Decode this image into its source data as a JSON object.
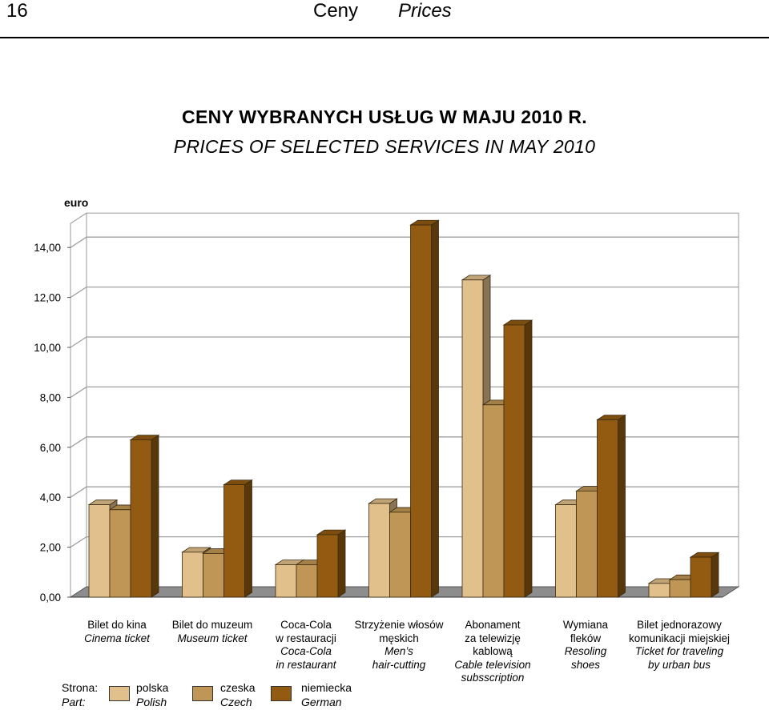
{
  "header": {
    "page_number": "16",
    "title_pl": "Ceny",
    "title_en": "Prices"
  },
  "chart_data": {
    "type": "bar",
    "title": "CENY WYBRANYCH USŁUG W MAJU 2010 R.",
    "subtitle": "PRICES OF SELECTED SERVICES IN MAY 2010",
    "ylabel": "euro",
    "ylim": [
      0,
      14
    ],
    "yticks": [
      "0,00",
      "2,00",
      "4,00",
      "6,00",
      "8,00",
      "10,00",
      "12,00",
      "14,00"
    ],
    "grid": true,
    "categories": [
      {
        "pl": [
          "Bilet do kina"
        ],
        "en": [
          "Cinema ticket"
        ]
      },
      {
        "pl": [
          "Bilet do muzeum"
        ],
        "en": [
          "Museum ticket"
        ]
      },
      {
        "pl": [
          "Coca-Cola",
          "w restauracji"
        ],
        "en": [
          "Coca-Cola",
          "in restaurant"
        ]
      },
      {
        "pl": [
          "Strzyżenie włosów",
          "męskich"
        ],
        "en": [
          "Men’s",
          "hair-cutting"
        ]
      },
      {
        "pl": [
          "Abonament",
          "za telewizję",
          "kablową"
        ],
        "en": [
          "Cable television",
          "subsscription"
        ]
      },
      {
        "pl": [
          "Wymiana",
          "fleków"
        ],
        "en": [
          "Resoling",
          "shoes"
        ]
      },
      {
        "pl": [
          "Bilet jednorazowy",
          "komunikacji miejskiej"
        ],
        "en": [
          "Ticket for traveling",
          "by urban bus"
        ]
      }
    ],
    "series": [
      {
        "name": "polska",
        "name_en": "Polish",
        "color": "#e2c08c",
        "values": [
          3.7,
          1.8,
          1.3,
          3.75,
          12.7,
          3.7,
          0.55
        ]
      },
      {
        "name": "czeska",
        "name_en": "Czech",
        "color": "#bf9655",
        "values": [
          3.5,
          1.75,
          1.3,
          3.4,
          7.7,
          4.25,
          0.7
        ]
      },
      {
        "name": "niemiecka",
        "name_en": "German",
        "color": "#935b12",
        "values": [
          6.3,
          4.5,
          2.5,
          14.9,
          10.9,
          7.1,
          1.6
        ]
      }
    ]
  },
  "legend": {
    "label_pl": "Strona:",
    "label_en": "Part:"
  },
  "colors": {
    "grid": "#a0a0a0",
    "floor": "#8d8d8d"
  }
}
